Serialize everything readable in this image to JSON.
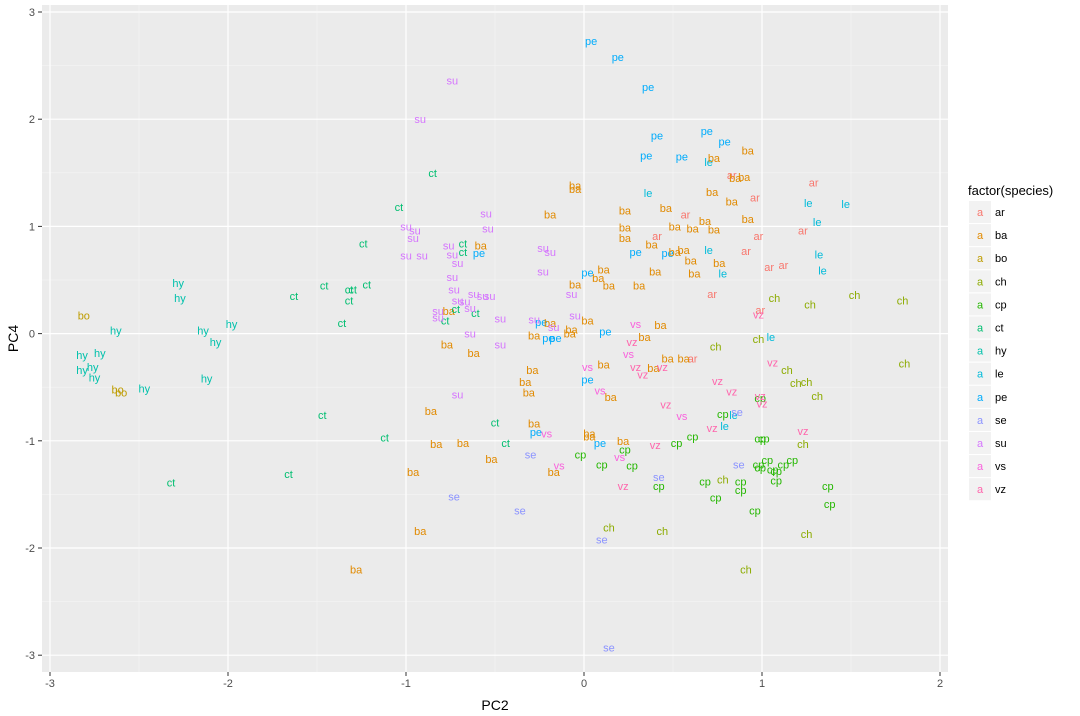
{
  "chart_data": {
    "type": "scatter",
    "title": "",
    "xlabel": "PC2",
    "ylabel": "PC4",
    "xlim": [
      -3.05,
      2.05
    ],
    "ylim": [
      -3.1,
      3.05
    ],
    "x_ticks": [
      -3,
      -2,
      -1,
      0,
      1,
      2
    ],
    "y_ticks": [
      -3,
      -2,
      -1,
      0,
      1,
      2,
      3
    ],
    "x_tick_labels": [
      "-3",
      "-2",
      "-1",
      "0",
      "1",
      "2"
    ],
    "y_tick_labels": [
      "-3",
      "-2",
      "-1",
      "0",
      "1",
      "2",
      "3"
    ],
    "grid": true,
    "legend": {
      "title": "factor(species)",
      "position": "right",
      "key_glyph": "a",
      "entries": [
        "ar",
        "ba",
        "bo",
        "ch",
        "cp",
        "ct",
        "hy",
        "le",
        "pe",
        "se",
        "su",
        "vs",
        "vz"
      ]
    },
    "colors": {
      "ar": "#F8766D",
      "ba": "#E18A00",
      "bo": "#BE9C00",
      "ch": "#8CAB00",
      "cp": "#24B700",
      "ct": "#00BE70",
      "hy": "#00C1AB",
      "le": "#00BBDA",
      "pe": "#00ACFC",
      "se": "#8B93FF",
      "su": "#D575FE",
      "vs": "#F962DD",
      "vz": "#FF65AC"
    },
    "points": [
      {
        "s": "pe",
        "x": 0.04,
        "y": 2.73
      },
      {
        "s": "pe",
        "x": 0.19,
        "y": 2.58
      },
      {
        "s": "pe",
        "x": 0.36,
        "y": 2.3
      },
      {
        "s": "pe",
        "x": 0.41,
        "y": 1.85
      },
      {
        "s": "pe",
        "x": 0.69,
        "y": 1.89
      },
      {
        "s": "pe",
        "x": 0.79,
        "y": 1.79
      },
      {
        "s": "pe",
        "x": 0.35,
        "y": 1.66
      },
      {
        "s": "pe",
        "x": 0.55,
        "y": 1.65
      },
      {
        "s": "pe",
        "x": -0.59,
        "y": 0.75
      },
      {
        "s": "pe",
        "x": 0.29,
        "y": 0.76
      },
      {
        "s": "pe",
        "x": 0.47,
        "y": 0.75
      },
      {
        "s": "pe",
        "x": 0.02,
        "y": 0.57
      },
      {
        "s": "pe",
        "x": 0.12,
        "y": 0.02
      },
      {
        "s": "pe",
        "x": -0.24,
        "y": 0.11
      },
      {
        "s": "pe",
        "x": -0.2,
        "y": -0.04
      },
      {
        "s": "pe",
        "x": -0.16,
        "y": -0.04
      },
      {
        "s": "pe",
        "x": 0.02,
        "y": -0.43
      },
      {
        "s": "pe",
        "x": -0.27,
        "y": -0.92
      },
      {
        "s": "pe",
        "x": 0.09,
        "y": -1.02
      },
      {
        "s": "le",
        "x": 0.36,
        "y": 1.31
      },
      {
        "s": "le",
        "x": 0.7,
        "y": 1.6
      },
      {
        "s": "le",
        "x": 1.26,
        "y": 1.22
      },
      {
        "s": "le",
        "x": 1.47,
        "y": 1.21
      },
      {
        "s": "le",
        "x": 1.31,
        "y": 1.04
      },
      {
        "s": "le",
        "x": 0.7,
        "y": 0.78
      },
      {
        "s": "le",
        "x": 1.32,
        "y": 0.74
      },
      {
        "s": "le",
        "x": 0.78,
        "y": 0.56
      },
      {
        "s": "le",
        "x": 1.34,
        "y": 0.59
      },
      {
        "s": "le",
        "x": 1.05,
        "y": -0.03
      },
      {
        "s": "le",
        "x": 0.79,
        "y": -0.86
      },
      {
        "s": "le",
        "x": 0.84,
        "y": -0.76
      },
      {
        "s": "ar",
        "x": 0.83,
        "y": 1.48
      },
      {
        "s": "ar",
        "x": 1.29,
        "y": 1.41
      },
      {
        "s": "ar",
        "x": 0.96,
        "y": 1.27
      },
      {
        "s": "ar",
        "x": 0.57,
        "y": 1.11
      },
      {
        "s": "ar",
        "x": 0.41,
        "y": 0.91
      },
      {
        "s": "ar",
        "x": 0.98,
        "y": 0.91
      },
      {
        "s": "ar",
        "x": 1.23,
        "y": 0.96
      },
      {
        "s": "ar",
        "x": 0.91,
        "y": 0.77
      },
      {
        "s": "ar",
        "x": 1.04,
        "y": 0.62
      },
      {
        "s": "ar",
        "x": 1.12,
        "y": 0.64
      },
      {
        "s": "ar",
        "x": 0.72,
        "y": 0.37
      },
      {
        "s": "ar",
        "x": 0.99,
        "y": 0.22
      },
      {
        "s": "ar",
        "x": 0.61,
        "y": -0.23
      },
      {
        "s": "ba",
        "x": -0.05,
        "y": 1.35
      },
      {
        "s": "ba",
        "x": -0.05,
        "y": 1.38
      },
      {
        "s": "ba",
        "x": -0.19,
        "y": 1.11
      },
      {
        "s": "ba",
        "x": 0.23,
        "y": 1.15
      },
      {
        "s": "ba",
        "x": 0.46,
        "y": 1.17
      },
      {
        "s": "ba",
        "x": 0.73,
        "y": 1.64
      },
      {
        "s": "ba",
        "x": 0.92,
        "y": 1.71
      },
      {
        "s": "ba",
        "x": 0.72,
        "y": 1.32
      },
      {
        "s": "ba",
        "x": 0.85,
        "y": 1.45
      },
      {
        "s": "ba",
        "x": 0.9,
        "y": 1.46
      },
      {
        "s": "ba",
        "x": 0.83,
        "y": 1.23
      },
      {
        "s": "ba",
        "x": 0.68,
        "y": 1.05
      },
      {
        "s": "ba",
        "x": 0.73,
        "y": 0.97
      },
      {
        "s": "ba",
        "x": 0.61,
        "y": 0.98
      },
      {
        "s": "ba",
        "x": 0.92,
        "y": 1.07
      },
      {
        "s": "ba",
        "x": 0.23,
        "y": 0.99
      },
      {
        "s": "ba",
        "x": 0.51,
        "y": 1.0
      },
      {
        "s": "ba",
        "x": 0.23,
        "y": 0.89
      },
      {
        "s": "ba",
        "x": 0.38,
        "y": 0.83
      },
      {
        "s": "ba",
        "x": 0.51,
        "y": 0.76
      },
      {
        "s": "ba",
        "x": 0.56,
        "y": 0.78
      },
      {
        "s": "ba",
        "x": 0.6,
        "y": 0.68
      },
      {
        "s": "ba",
        "x": 0.76,
        "y": 0.66
      },
      {
        "s": "ba",
        "x": 0.4,
        "y": 0.58
      },
      {
        "s": "ba",
        "x": 0.62,
        "y": 0.56
      },
      {
        "s": "ba",
        "x": -0.58,
        "y": 0.82
      },
      {
        "s": "ba",
        "x": 0.11,
        "y": 0.6
      },
      {
        "s": "ba",
        "x": 0.08,
        "y": 0.52
      },
      {
        "s": "ba",
        "x": 0.14,
        "y": 0.45
      },
      {
        "s": "ba",
        "x": 0.31,
        "y": 0.45
      },
      {
        "s": "ba",
        "x": -0.05,
        "y": 0.46
      },
      {
        "s": "ba",
        "x": -0.76,
        "y": 0.21
      },
      {
        "s": "ba",
        "x": 0.02,
        "y": 0.12
      },
      {
        "s": "ba",
        "x": 0.43,
        "y": 0.08
      },
      {
        "s": "ba",
        "x": -0.19,
        "y": 0.1
      },
      {
        "s": "ba",
        "x": -0.07,
        "y": 0.04
      },
      {
        "s": "ba",
        "x": -0.08,
        "y": 0.0
      },
      {
        "s": "ba",
        "x": -0.28,
        "y": -0.02
      },
      {
        "s": "ba",
        "x": 0.34,
        "y": -0.03
      },
      {
        "s": "ba",
        "x": -0.77,
        "y": -0.1
      },
      {
        "s": "ba",
        "x": -0.62,
        "y": -0.18
      },
      {
        "s": "ba",
        "x": 0.47,
        "y": -0.23
      },
      {
        "s": "ba",
        "x": 0.56,
        "y": -0.23
      },
      {
        "s": "ba",
        "x": 0.39,
        "y": -0.32
      },
      {
        "s": "ba",
        "x": 0.11,
        "y": -0.29
      },
      {
        "s": "ba",
        "x": -0.29,
        "y": -0.34
      },
      {
        "s": "ba",
        "x": -0.33,
        "y": -0.45
      },
      {
        "s": "ba",
        "x": -0.31,
        "y": -0.55
      },
      {
        "s": "ba",
        "x": 0.15,
        "y": -0.59
      },
      {
        "s": "ba",
        "x": -0.86,
        "y": -0.72
      },
      {
        "s": "ba",
        "x": -0.28,
        "y": -0.84
      },
      {
        "s": "ba",
        "x": 0.03,
        "y": -0.93
      },
      {
        "s": "ba",
        "x": 0.03,
        "y": -0.96
      },
      {
        "s": "ba",
        "x": -0.83,
        "y": -1.03
      },
      {
        "s": "ba",
        "x": -0.68,
        "y": -1.02
      },
      {
        "s": "ba",
        "x": -0.52,
        "y": -1.17
      },
      {
        "s": "ba",
        "x": -0.17,
        "y": -1.29
      },
      {
        "s": "ba",
        "x": 0.22,
        "y": -1.0
      },
      {
        "s": "ba",
        "x": -0.96,
        "y": -1.29
      },
      {
        "s": "ba",
        "x": -0.92,
        "y": -1.84
      },
      {
        "s": "ba",
        "x": -1.28,
        "y": -2.2
      },
      {
        "s": "bo",
        "x": -2.81,
        "y": 0.17
      },
      {
        "s": "bo",
        "x": -2.62,
        "y": -0.52
      },
      {
        "s": "bo",
        "x": -2.6,
        "y": -0.55
      },
      {
        "s": "ch",
        "x": 1.52,
        "y": 0.36
      },
      {
        "s": "ch",
        "x": 1.79,
        "y": 0.31
      },
      {
        "s": "ch",
        "x": 1.27,
        "y": 0.27
      },
      {
        "s": "ch",
        "x": 1.07,
        "y": 0.33
      },
      {
        "s": "ch",
        "x": 0.74,
        "y": -0.12
      },
      {
        "s": "ch",
        "x": 0.98,
        "y": -0.05
      },
      {
        "s": "ch",
        "x": 1.14,
        "y": -0.34
      },
      {
        "s": "ch",
        "x": 1.19,
        "y": -0.46
      },
      {
        "s": "ch",
        "x": 1.25,
        "y": -0.45
      },
      {
        "s": "ch",
        "x": 1.31,
        "y": -0.58
      },
      {
        "s": "ch",
        "x": 1.23,
        "y": -1.03
      },
      {
        "s": "ch",
        "x": 0.78,
        "y": -1.36
      },
      {
        "s": "ch",
        "x": 0.14,
        "y": -1.81
      },
      {
        "s": "ch",
        "x": 0.44,
        "y": -1.84
      },
      {
        "s": "ch",
        "x": 1.25,
        "y": -1.87
      },
      {
        "s": "ch",
        "x": 0.91,
        "y": -2.2
      },
      {
        "s": "ch",
        "x": 1.8,
        "y": -0.28
      },
      {
        "s": "cp",
        "x": 0.78,
        "y": -0.75
      },
      {
        "s": "cp",
        "x": 0.99,
        "y": -0.98
      },
      {
        "s": "cp",
        "x": 0.61,
        "y": -0.96
      },
      {
        "s": "cp",
        "x": 0.52,
        "y": -1.02
      },
      {
        "s": "cp",
        "x": 0.23,
        "y": -1.08
      },
      {
        "s": "cp",
        "x": -0.02,
        "y": -1.13
      },
      {
        "s": "cp",
        "x": 0.1,
        "y": -1.22
      },
      {
        "s": "cp",
        "x": 0.27,
        "y": -1.23
      },
      {
        "s": "cp",
        "x": 0.42,
        "y": -1.42
      },
      {
        "s": "cp",
        "x": 0.68,
        "y": -1.38
      },
      {
        "s": "cp",
        "x": 0.74,
        "y": -1.53
      },
      {
        "s": "cp",
        "x": 0.88,
        "y": -1.38
      },
      {
        "s": "cp",
        "x": 0.88,
        "y": -1.46
      },
      {
        "s": "cp",
        "x": 0.98,
        "y": -1.22
      },
      {
        "s": "cp",
        "x": 0.99,
        "y": -1.25
      },
      {
        "s": "cp",
        "x": 1.06,
        "y": -1.27
      },
      {
        "s": "cp",
        "x": 1.03,
        "y": -1.18
      },
      {
        "s": "cp",
        "x": 1.12,
        "y": -1.22
      },
      {
        "s": "cp",
        "x": 1.17,
        "y": -1.18
      },
      {
        "s": "cp",
        "x": 1.08,
        "y": -1.37
      },
      {
        "s": "cp",
        "x": 1.37,
        "y": -1.42
      },
      {
        "s": "cp",
        "x": 1.38,
        "y": -1.59
      },
      {
        "s": "cp",
        "x": 0.99,
        "y": -0.6
      },
      {
        "s": "cp",
        "x": 1.01,
        "y": -0.98
      },
      {
        "s": "cp",
        "x": 1.08,
        "y": -1.28
      },
      {
        "s": "cp",
        "x": 0.96,
        "y": -1.65
      },
      {
        "s": "ct",
        "x": -0.85,
        "y": 1.5
      },
      {
        "s": "ct",
        "x": -1.04,
        "y": 1.18
      },
      {
        "s": "ct",
        "x": -1.24,
        "y": 0.84
      },
      {
        "s": "ct",
        "x": -0.68,
        "y": 0.84
      },
      {
        "s": "ct",
        "x": -0.68,
        "y": 0.76
      },
      {
        "s": "ct",
        "x": -0.72,
        "y": 0.23
      },
      {
        "s": "ct",
        "x": -1.32,
        "y": 0.41
      },
      {
        "s": "ct",
        "x": -1.3,
        "y": 0.41
      },
      {
        "s": "ct",
        "x": -1.22,
        "y": 0.46
      },
      {
        "s": "ct",
        "x": -1.46,
        "y": 0.45
      },
      {
        "s": "ct",
        "x": -1.63,
        "y": 0.35
      },
      {
        "s": "ct",
        "x": -1.32,
        "y": 0.31
      },
      {
        "s": "ct",
        "x": -1.36,
        "y": 0.1
      },
      {
        "s": "ct",
        "x": -0.78,
        "y": 0.12
      },
      {
        "s": "ct",
        "x": -1.47,
        "y": -0.76
      },
      {
        "s": "ct",
        "x": -0.5,
        "y": -0.83
      },
      {
        "s": "ct",
        "x": -1.12,
        "y": -0.97
      },
      {
        "s": "ct",
        "x": -0.44,
        "y": -1.02
      },
      {
        "s": "ct",
        "x": -1.66,
        "y": -1.31
      },
      {
        "s": "ct",
        "x": -2.32,
        "y": -1.39
      },
      {
        "s": "ct",
        "x": -0.61,
        "y": 0.19
      },
      {
        "s": "hy",
        "x": -2.28,
        "y": 0.47
      },
      {
        "s": "hy",
        "x": -2.27,
        "y": 0.33
      },
      {
        "s": "hy",
        "x": -2.63,
        "y": 0.03
      },
      {
        "s": "hy",
        "x": -2.14,
        "y": 0.03
      },
      {
        "s": "hy",
        "x": -2.07,
        "y": -0.08
      },
      {
        "s": "hy",
        "x": -1.98,
        "y": 0.09
      },
      {
        "s": "hy",
        "x": -2.82,
        "y": -0.2
      },
      {
        "s": "hy",
        "x": -2.72,
        "y": -0.18
      },
      {
        "s": "hy",
        "x": -2.76,
        "y": -0.31
      },
      {
        "s": "hy",
        "x": -2.82,
        "y": -0.34
      },
      {
        "s": "hy",
        "x": -2.75,
        "y": -0.41
      },
      {
        "s": "hy",
        "x": -2.47,
        "y": -0.51
      },
      {
        "s": "hy",
        "x": -2.12,
        "y": -0.42
      },
      {
        "s": "se",
        "x": 0.87,
        "y": -1.22
      },
      {
        "s": "se",
        "x": 0.42,
        "y": -1.34
      },
      {
        "s": "se",
        "x": -0.3,
        "y": -1.13
      },
      {
        "s": "se",
        "x": -0.73,
        "y": -1.52
      },
      {
        "s": "se",
        "x": -0.36,
        "y": -1.65
      },
      {
        "s": "se",
        "x": 0.1,
        "y": -1.92
      },
      {
        "s": "se",
        "x": 0.14,
        "y": -2.93
      },
      {
        "s": "se",
        "x": 0.86,
        "y": -0.73
      },
      {
        "s": "su",
        "x": -0.74,
        "y": 2.36
      },
      {
        "s": "su",
        "x": -0.92,
        "y": 2.0
      },
      {
        "s": "su",
        "x": -0.55,
        "y": 1.12
      },
      {
        "s": "su",
        "x": -1.0,
        "y": 1.0
      },
      {
        "s": "su",
        "x": -0.95,
        "y": 0.96
      },
      {
        "s": "su",
        "x": -0.54,
        "y": 0.98
      },
      {
        "s": "su",
        "x": -0.96,
        "y": 0.89
      },
      {
        "s": "su",
        "x": -0.76,
        "y": 0.82
      },
      {
        "s": "su",
        "x": -0.23,
        "y": 0.8
      },
      {
        "s": "su",
        "x": -0.19,
        "y": 0.76
      },
      {
        "s": "su",
        "x": -1.0,
        "y": 0.73
      },
      {
        "s": "su",
        "x": -0.91,
        "y": 0.73
      },
      {
        "s": "su",
        "x": -0.74,
        "y": 0.74
      },
      {
        "s": "su",
        "x": -0.71,
        "y": 0.66
      },
      {
        "s": "su",
        "x": -0.23,
        "y": 0.58
      },
      {
        "s": "su",
        "x": -0.74,
        "y": 0.53
      },
      {
        "s": "su",
        "x": -0.73,
        "y": 0.41
      },
      {
        "s": "su",
        "x": -0.62,
        "y": 0.37
      },
      {
        "s": "su",
        "x": -0.57,
        "y": 0.35
      },
      {
        "s": "su",
        "x": -0.53,
        "y": 0.35
      },
      {
        "s": "su",
        "x": -0.71,
        "y": 0.31
      },
      {
        "s": "su",
        "x": -0.67,
        "y": 0.3
      },
      {
        "s": "su",
        "x": -0.07,
        "y": 0.37
      },
      {
        "s": "su",
        "x": -0.82,
        "y": 0.21
      },
      {
        "s": "su",
        "x": -0.64,
        "y": 0.24
      },
      {
        "s": "su",
        "x": -0.82,
        "y": 0.15
      },
      {
        "s": "su",
        "x": -0.47,
        "y": 0.14
      },
      {
        "s": "su",
        "x": -0.28,
        "y": 0.13
      },
      {
        "s": "su",
        "x": -0.17,
        "y": 0.06
      },
      {
        "s": "su",
        "x": -0.64,
        "y": 0.0
      },
      {
        "s": "su",
        "x": -0.47,
        "y": -0.1
      },
      {
        "s": "su",
        "x": -0.05,
        "y": 0.17
      },
      {
        "s": "su",
        "x": -0.71,
        "y": -0.57
      },
      {
        "s": "vs",
        "x": 0.29,
        "y": 0.09
      },
      {
        "s": "vs",
        "x": 0.25,
        "y": -0.19
      },
      {
        "s": "vs",
        "x": 0.02,
        "y": -0.31
      },
      {
        "s": "vs",
        "x": 0.09,
        "y": -0.53
      },
      {
        "s": "vs",
        "x": 0.55,
        "y": -0.77
      },
      {
        "s": "vs",
        "x": -0.21,
        "y": -0.93
      },
      {
        "s": "vs",
        "x": 0.2,
        "y": -1.15
      },
      {
        "s": "vs",
        "x": -0.14,
        "y": -1.23
      },
      {
        "s": "vz",
        "x": 0.27,
        "y": -0.08
      },
      {
        "s": "vz",
        "x": 0.29,
        "y": -0.31
      },
      {
        "s": "vz",
        "x": 0.33,
        "y": -0.38
      },
      {
        "s": "vz",
        "x": 0.44,
        "y": -0.31
      },
      {
        "s": "vz",
        "x": 0.75,
        "y": -0.44
      },
      {
        "s": "vz",
        "x": 0.83,
        "y": -0.54
      },
      {
        "s": "vz",
        "x": 0.99,
        "y": -0.58
      },
      {
        "s": "vz",
        "x": 1.0,
        "y": -0.65
      },
      {
        "s": "vz",
        "x": 0.46,
        "y": -0.66
      },
      {
        "s": "vz",
        "x": 0.72,
        "y": -0.88
      },
      {
        "s": "vz",
        "x": 1.23,
        "y": -0.91
      },
      {
        "s": "vz",
        "x": 0.4,
        "y": -1.04
      },
      {
        "s": "vz",
        "x": 0.22,
        "y": -1.42
      },
      {
        "s": "vz",
        "x": 1.06,
        "y": -0.27
      },
      {
        "s": "vz",
        "x": 0.98,
        "y": 0.18
      }
    ]
  }
}
